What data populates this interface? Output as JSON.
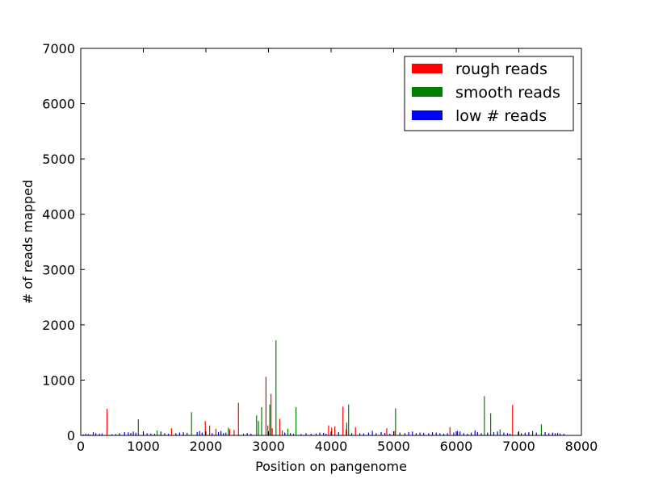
{
  "chart_data": {
    "type": "bar",
    "title": "",
    "xlabel": "Position on pangenome",
    "ylabel": "# of reads mapped",
    "xlim": [
      0,
      8000
    ],
    "ylim": [
      0,
      7000
    ],
    "x_ticks": [
      "0",
      "1000",
      "2000",
      "3000",
      "4000",
      "5000",
      "6000",
      "7000",
      "8000"
    ],
    "y_ticks": [
      "0",
      "1000",
      "2000",
      "3000",
      "4000",
      "5000",
      "6000",
      "7000"
    ],
    "grid": false,
    "legend_position": "top-right",
    "series": [
      {
        "name": "rough reads",
        "color": "#ff0000",
        "points": [
          [
            420,
            480
          ],
          [
            1450,
            130
          ],
          [
            1990,
            260
          ],
          [
            2060,
            180
          ],
          [
            2160,
            120
          ],
          [
            2380,
            110
          ],
          [
            2450,
            100
          ],
          [
            2520,
            590
          ],
          [
            2960,
            1060
          ],
          [
            2990,
            180
          ],
          [
            3040,
            750
          ],
          [
            3060,
            130
          ],
          [
            3180,
            300
          ],
          [
            3220,
            90
          ],
          [
            3960,
            180
          ],
          [
            4010,
            140
          ],
          [
            4060,
            160
          ],
          [
            4190,
            520
          ],
          [
            4240,
            110
          ],
          [
            4390,
            150
          ],
          [
            4890,
            130
          ],
          [
            5020,
            80
          ],
          [
            5900,
            150
          ],
          [
            6900,
            550
          ],
          [
            6990,
            60
          ]
        ]
      },
      {
        "name": "smooth reads",
        "color": "#008000",
        "points": [
          [
            920,
            290
          ],
          [
            1220,
            90
          ],
          [
            1770,
            420
          ],
          [
            2360,
            140
          ],
          [
            2810,
            360
          ],
          [
            2840,
            260
          ],
          [
            2890,
            510
          ],
          [
            3020,
            560
          ],
          [
            3120,
            1720
          ],
          [
            3310,
            120
          ],
          [
            3440,
            510
          ],
          [
            4250,
            230
          ],
          [
            4280,
            560
          ],
          [
            5030,
            490
          ],
          [
            6450,
            710
          ],
          [
            6550,
            400
          ],
          [
            6700,
            110
          ],
          [
            7360,
            200
          ]
        ]
      },
      {
        "name": "low # reads",
        "color": "#0000ff",
        "points": [
          [
            40,
            20
          ],
          [
            80,
            30
          ],
          [
            120,
            25
          ],
          [
            150,
            15
          ],
          [
            200,
            60
          ],
          [
            240,
            40
          ],
          [
            300,
            30
          ],
          [
            340,
            35
          ],
          [
            500,
            20
          ],
          [
            560,
            25
          ],
          [
            620,
            40
          ],
          [
            700,
            60
          ],
          [
            760,
            55
          ],
          [
            800,
            45
          ],
          [
            840,
            70
          ],
          [
            880,
            50
          ],
          [
            1000,
            60
          ],
          [
            1060,
            40
          ],
          [
            1120,
            35
          ],
          [
            1180,
            30
          ],
          [
            1280,
            70
          ],
          [
            1340,
            40
          ],
          [
            1400,
            30
          ],
          [
            1520,
            40
          ],
          [
            1580,
            50
          ],
          [
            1640,
            60
          ],
          [
            1700,
            45
          ],
          [
            1860,
            60
          ],
          [
            1900,
            80
          ],
          [
            1940,
            50
          ],
          [
            2100,
            40
          ],
          [
            2200,
            60
          ],
          [
            2240,
            80
          ],
          [
            2280,
            40
          ],
          [
            2320,
            50
          ],
          [
            2600,
            30
          ],
          [
            2660,
            40
          ],
          [
            2720,
            30
          ],
          [
            3260,
            50
          ],
          [
            3350,
            40
          ],
          [
            3400,
            30
          ],
          [
            3520,
            25
          ],
          [
            3600,
            40
          ],
          [
            3680,
            30
          ],
          [
            3760,
            35
          ],
          [
            3820,
            50
          ],
          [
            3880,
            45
          ],
          [
            3920,
            30
          ],
          [
            4120,
            60
          ],
          [
            4330,
            40
          ],
          [
            4460,
            40
          ],
          [
            4520,
            35
          ],
          [
            4600,
            50
          ],
          [
            4660,
            80
          ],
          [
            4720,
            40
          ],
          [
            4800,
            60
          ],
          [
            4860,
            45
          ],
          [
            4940,
            30
          ],
          [
            5100,
            50
          ],
          [
            5180,
            40
          ],
          [
            5240,
            60
          ],
          [
            5300,
            70
          ],
          [
            5360,
            40
          ],
          [
            5420,
            50
          ],
          [
            5480,
            45
          ],
          [
            5560,
            40
          ],
          [
            5620,
            60
          ],
          [
            5680,
            50
          ],
          [
            5740,
            40
          ],
          [
            5800,
            30
          ],
          [
            5860,
            40
          ],
          [
            5960,
            50
          ],
          [
            6020,
            80
          ],
          [
            6060,
            70
          ],
          [
            6120,
            40
          ],
          [
            6180,
            30
          ],
          [
            6240,
            50
          ],
          [
            6300,
            90
          ],
          [
            6340,
            60
          ],
          [
            6400,
            40
          ],
          [
            6500,
            50
          ],
          [
            6600,
            60
          ],
          [
            6660,
            70
          ],
          [
            6760,
            50
          ],
          [
            6820,
            40
          ],
          [
            6860,
            30
          ],
          [
            7040,
            40
          ],
          [
            7100,
            50
          ],
          [
            7160,
            60
          ],
          [
            7220,
            80
          ],
          [
            7280,
            50
          ],
          [
            7420,
            60
          ],
          [
            7480,
            40
          ],
          [
            7540,
            50
          ],
          [
            7580,
            40
          ],
          [
            7620,
            45
          ],
          [
            7660,
            35
          ],
          [
            7720,
            30
          ]
        ]
      }
    ]
  }
}
